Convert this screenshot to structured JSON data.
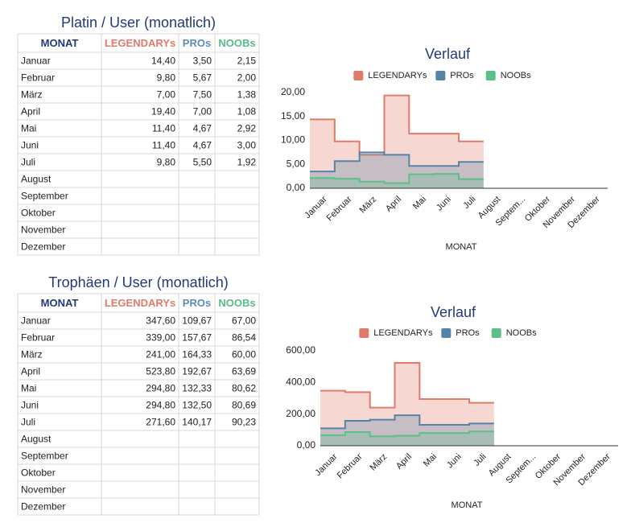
{
  "tables": [
    {
      "title": "Platin / User (monatlich)",
      "header": [
        "MONAT",
        "LEGENDARYs",
        "PROs",
        "NOOBs"
      ],
      "header_colors": [
        "#1f3a78",
        "#e07b6a",
        "#5b8db8",
        "#57bb8a"
      ],
      "rows": [
        [
          "Januar",
          "14,40",
          "3,50",
          "2,15"
        ],
        [
          "Februar",
          "9,80",
          "5,67",
          "2,00"
        ],
        [
          "März",
          "7,00",
          "7,50",
          "1,38"
        ],
        [
          "April",
          "19,40",
          "7,00",
          "1,08"
        ],
        [
          "Mai",
          "11,40",
          "4,67",
          "2,92"
        ],
        [
          "Juni",
          "11,40",
          "4,67",
          "3,00"
        ],
        [
          "Juli",
          "9,80",
          "5,50",
          "1,92"
        ],
        [
          "August"
        ],
        [
          "September"
        ],
        [
          "Oktober"
        ],
        [
          "November"
        ],
        [
          "Dezember"
        ]
      ]
    },
    {
      "title": "Trophäen / User (monatlich)",
      "header": [
        "MONAT",
        "LEGENDARYs",
        "PROs",
        "NOOBs"
      ],
      "header_colors": [
        "#1f3a78",
        "#e07b6a",
        "#5b8db8",
        "#57bb8a"
      ],
      "rows": [
        [
          "Januar",
          "347,60",
          "109,67",
          "67,00"
        ],
        [
          "Februar",
          "339,00",
          "157,67",
          "86,54"
        ],
        [
          "März",
          "241,00",
          "164,33",
          "60,00"
        ],
        [
          "April",
          "523,80",
          "192,67",
          "63,69"
        ],
        [
          "Mai",
          "294,80",
          "132,33",
          "80,62"
        ],
        [
          "Juni",
          "294,80",
          "132,50",
          "80,69"
        ],
        [
          "Juli",
          "271,60",
          "140,17",
          "90,23"
        ],
        [
          "August"
        ],
        [
          "September"
        ],
        [
          "Oktober"
        ],
        [
          "November"
        ],
        [
          "Dezember"
        ]
      ]
    }
  ],
  "chart_data": [
    {
      "type": "area",
      "step": true,
      "title": "Verlauf",
      "x_label": "MONAT",
      "legend": "top",
      "grid": false,
      "categories": [
        "Januar",
        "Februar",
        "März",
        "April",
        "Mai",
        "Juni",
        "Juli",
        "August",
        "Septem...",
        "Oktober",
        "November",
        "Dezember"
      ],
      "series": [
        {
          "name": "LEGENDARYs",
          "color": "#e07b6a",
          "values": [
            14.4,
            9.8,
            7.0,
            19.4,
            11.4,
            11.4,
            9.8,
            null,
            null,
            null,
            null,
            null
          ]
        },
        {
          "name": "PROs",
          "color": "#5585a6",
          "values": [
            3.5,
            5.67,
            7.5,
            7.0,
            4.67,
            4.67,
            5.5,
            null,
            null,
            null,
            null,
            null
          ]
        },
        {
          "name": "NOOBs",
          "color": "#5cbf8a",
          "values": [
            2.15,
            2.0,
            1.38,
            1.08,
            2.92,
            3.0,
            1.92,
            null,
            null,
            null,
            null,
            null
          ]
        }
      ],
      "ylim": [
        0,
        20
      ],
      "yticks": [
        {
          "value": 0,
          "label": "0,00"
        },
        {
          "value": 5,
          "label": "5,00"
        },
        {
          "value": 10,
          "label": "10,00"
        },
        {
          "value": 15,
          "label": "15,00"
        },
        {
          "value": 20,
          "label": "20,00"
        }
      ]
    },
    {
      "type": "area",
      "step": true,
      "title": "Verlauf",
      "x_label": "MONAT",
      "legend": "top",
      "grid": false,
      "categories": [
        "Januar",
        "Februar",
        "März",
        "April",
        "Mai",
        "Juni",
        "Juli",
        "August",
        "Septem...",
        "Oktober",
        "November",
        "Dezember"
      ],
      "series": [
        {
          "name": "LEGENDARYs",
          "color": "#e07b6a",
          "values": [
            347.6,
            339.0,
            241.0,
            523.8,
            294.8,
            294.8,
            271.6,
            null,
            null,
            null,
            null,
            null
          ]
        },
        {
          "name": "PROs",
          "color": "#5585a6",
          "values": [
            109.67,
            157.67,
            164.33,
            192.67,
            132.33,
            132.5,
            140.17,
            null,
            null,
            null,
            null,
            null
          ]
        },
        {
          "name": "NOOBs",
          "color": "#5cbf8a",
          "values": [
            67.0,
            86.54,
            60.0,
            63.69,
            80.62,
            80.69,
            90.23,
            null,
            null,
            null,
            null,
            null
          ]
        }
      ],
      "ylim": [
        0,
        600
      ],
      "yticks": [
        {
          "value": 0,
          "label": "0,00"
        },
        {
          "value": 200,
          "label": "200,00"
        },
        {
          "value": 400,
          "label": "400,00"
        },
        {
          "value": 600,
          "label": "600,00"
        }
      ]
    }
  ]
}
